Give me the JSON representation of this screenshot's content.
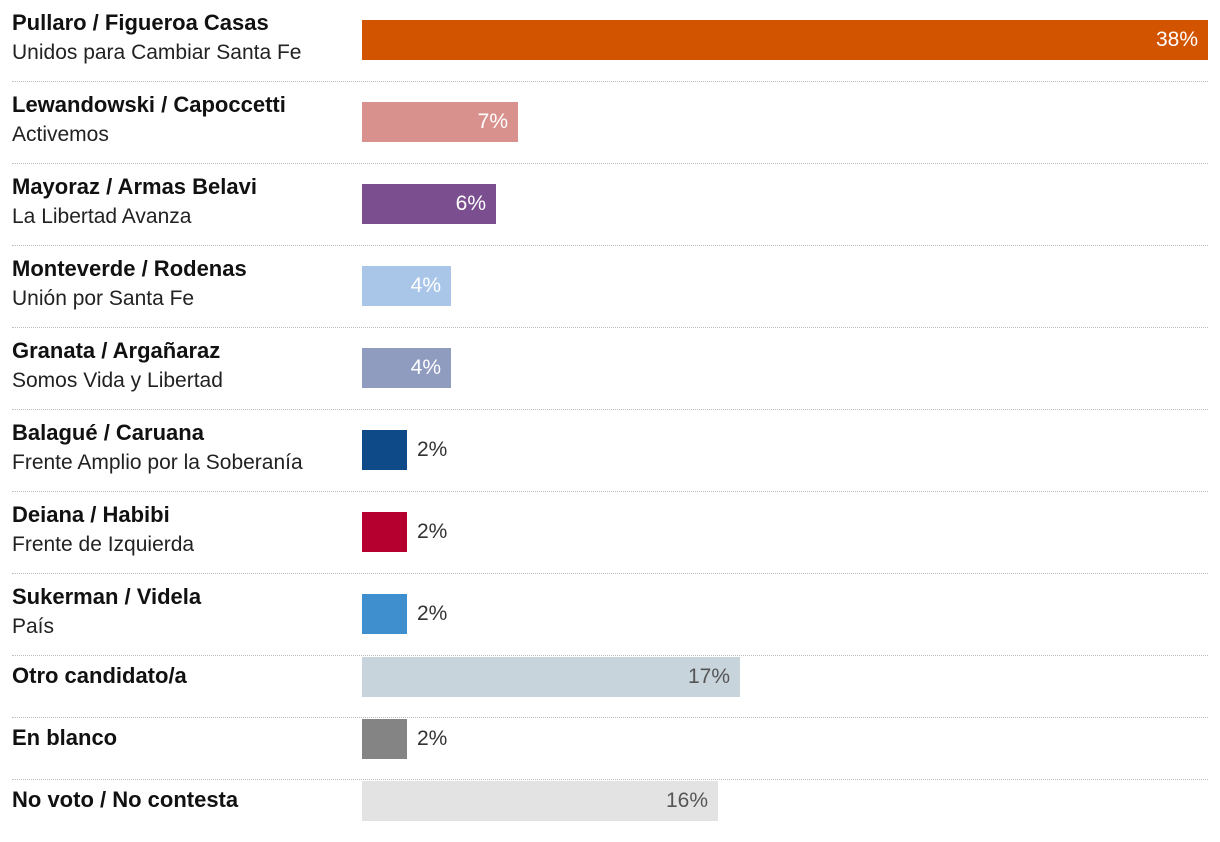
{
  "chart_data": {
    "type": "bar",
    "orientation": "horizontal",
    "title": "",
    "xlabel": "",
    "ylabel": "",
    "xlim": [
      0,
      38
    ],
    "value_suffix": "%",
    "grid": false,
    "rows": [
      {
        "name": "Pullaro / Figueroa Casas",
        "party": "Unidos para Cambiar Santa Fe",
        "value": 38,
        "label": "38%",
        "color": "#d35400"
      },
      {
        "name": "Lewandowski / Capoccetti",
        "party": "Activemos",
        "value": 7,
        "label": "7%",
        "color": "#d9918d"
      },
      {
        "name": "Mayoraz / Armas Belavi",
        "party": "La Libertad Avanza",
        "value": 6,
        "label": "6%",
        "color": "#7b4e8f"
      },
      {
        "name": "Monteverde / Rodenas",
        "party": "Unión por Santa Fe",
        "value": 4,
        "label": "4%",
        "color": "#a9c6e8"
      },
      {
        "name": "Granata / Argañaraz",
        "party": "Somos Vida y Libertad",
        "value": 4,
        "label": "4%",
        "color": "#8f9bbf"
      },
      {
        "name": "Balagué / Caruana",
        "party": "Frente Amplio por la Soberanía",
        "value": 2,
        "label": "2%",
        "color": "#0d4a87"
      },
      {
        "name": "Deiana / Habibi",
        "party": "Frente de Izquierda",
        "value": 2,
        "label": "2%",
        "color": "#b5002f"
      },
      {
        "name": "Sukerman / Videla",
        "party": "País",
        "value": 2,
        "label": "2%",
        "color": "#3f8fce"
      },
      {
        "name": "Otro candidato/a",
        "party": "",
        "value": 17,
        "label": "17%",
        "color": "#c8d4dc"
      },
      {
        "name": "En blanco",
        "party": "",
        "value": 2,
        "label": "2%",
        "color": "#848484"
      },
      {
        "name": "No voto / No contesta",
        "party": "",
        "value": 16,
        "label": "16%",
        "color": "#e3e3e3"
      }
    ]
  }
}
